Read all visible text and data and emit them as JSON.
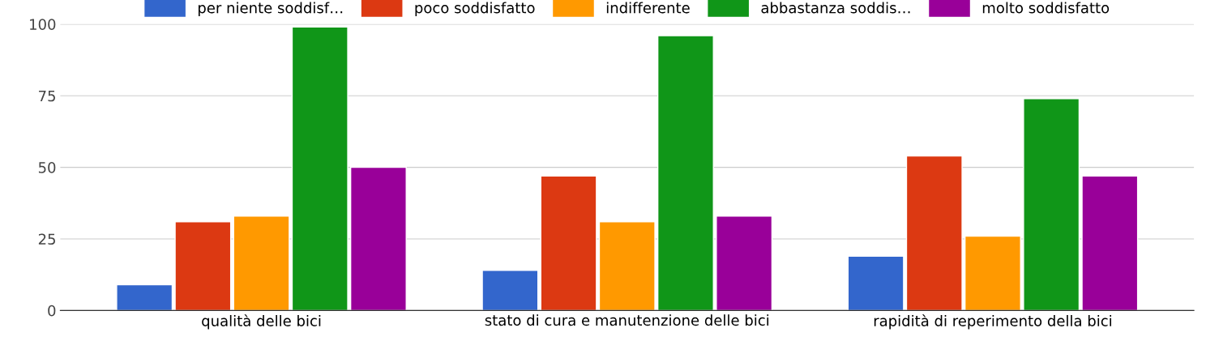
{
  "chart_data": {
    "type": "bar",
    "categories": [
      "qualità delle bici",
      "stato di cura e manutenzione delle bici",
      "rapidità di reperimento della bici"
    ],
    "series": [
      {
        "name": "per niente soddisf…",
        "color": "#3366cc",
        "values": [
          9,
          14,
          19
        ]
      },
      {
        "name": "poco soddisfatto",
        "color": "#dc3912",
        "values": [
          31,
          47,
          54
        ]
      },
      {
        "name": "indifferente",
        "color": "#ff9900",
        "values": [
          33,
          31,
          26
        ]
      },
      {
        "name": "abbastanza soddis…",
        "color": "#109618",
        "values": [
          99,
          96,
          74
        ]
      },
      {
        "name": "molto soddisfatto",
        "color": "#990099",
        "values": [
          50,
          33,
          47
        ]
      }
    ],
    "ylim": [
      0,
      100
    ],
    "yticks": [
      0,
      25,
      50,
      75,
      100
    ],
    "grid": "y",
    "legend": "top"
  }
}
